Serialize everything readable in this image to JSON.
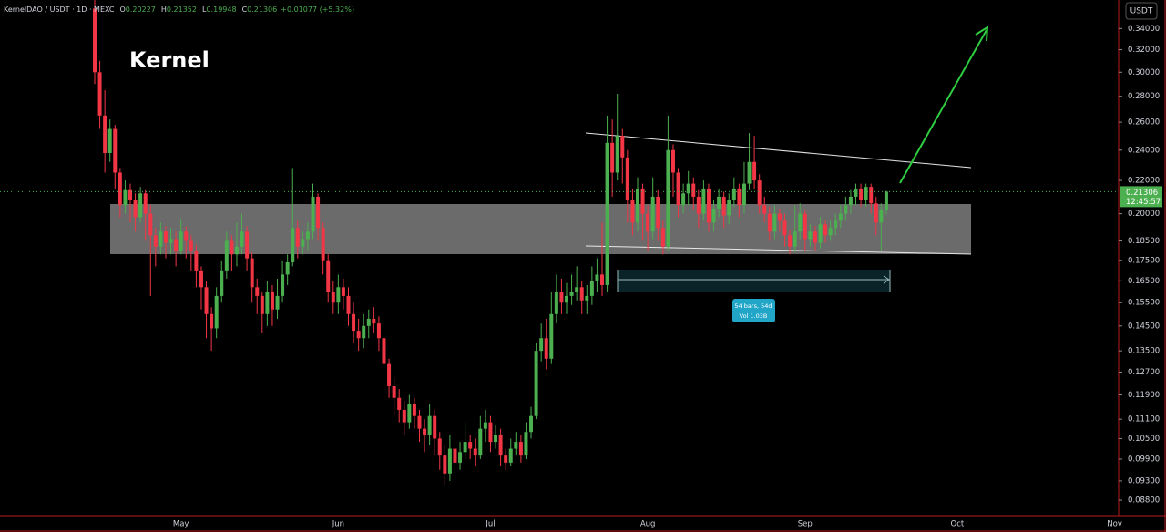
{
  "header": {
    "symbol": "KernelDAO / USDT · 1D · MEXC",
    "ohlc": [
      {
        "key": "O",
        "value": "0.20227"
      },
      {
        "key": "H",
        "value": "0.21352"
      },
      {
        "key": "L",
        "value": "0.19948"
      },
      {
        "key": "C",
        "value": "0.21306"
      }
    ],
    "change": "+0.01077 (+5.32%)"
  },
  "chart_data": {
    "type": "candlestick",
    "title": "Kernel",
    "currency": "USDT",
    "countdown": "12:45:57",
    "log_scale": true,
    "grid": false,
    "up_color": "#4caf50",
    "down_color": "#f23645",
    "x_labels": [
      "May",
      "Jun",
      "Jul",
      "Aug",
      "Sep",
      "Oct",
      "Nov"
    ],
    "measure": {
      "bars": "54 bars, 54d",
      "volume": "Vol 1.03B"
    },
    "ylim": [
      0.0842,
      0.369
    ],
    "yticks": [
      {
        "value": 0.34,
        "label": "0.34000"
      },
      {
        "value": 0.32,
        "label": "0.32000"
      },
      {
        "value": 0.3,
        "label": "0.30000"
      },
      {
        "value": 0.28,
        "label": "0.28000"
      },
      {
        "value": 0.26,
        "label": "0.26000"
      },
      {
        "value": 0.24,
        "label": "0.24000"
      },
      {
        "value": 0.22,
        "label": "0.22000"
      },
      {
        "value": 0.2,
        "label": "0.20000"
      },
      {
        "value": 0.185,
        "label": "0.18500"
      },
      {
        "value": 0.175,
        "label": "0.17500"
      },
      {
        "value": 0.165,
        "label": "0.16500"
      },
      {
        "value": 0.155,
        "label": "0.15500"
      },
      {
        "value": 0.145,
        "label": "0.14500"
      },
      {
        "value": 0.135,
        "label": "0.13500"
      },
      {
        "value": 0.127,
        "label": "0.12700"
      },
      {
        "value": 0.119,
        "label": "0.11900"
      },
      {
        "value": 0.111,
        "label": "0.11100"
      },
      {
        "value": 0.105,
        "label": "0.10500"
      },
      {
        "value": 0.099,
        "label": "0.09900"
      },
      {
        "value": 0.093,
        "label": "0.09300"
      },
      {
        "value": 0.088,
        "label": "0.08800"
      }
    ],
    "open": [
      0.36,
      0.3,
      0.265,
      0.238,
      0.255,
      0.225,
      0.205,
      0.214,
      0.208,
      0.198,
      0.212,
      0.2,
      0.188,
      0.182,
      0.19,
      0.184,
      0.186,
      0.18,
      0.19,
      0.185,
      0.18,
      0.17,
      0.162,
      0.15,
      0.144,
      0.158,
      0.17,
      0.185,
      0.178,
      0.182,
      0.19,
      0.176,
      0.162,
      0.158,
      0.15,
      0.16,
      0.152,
      0.158,
      0.168,
      0.174,
      0.192,
      0.182,
      0.186,
      0.19,
      0.21,
      0.192,
      0.175,
      0.16,
      0.155,
      0.162,
      0.158,
      0.15,
      0.143,
      0.14,
      0.145,
      0.148,
      0.146,
      0.14,
      0.13,
      0.122,
      0.118,
      0.114,
      0.11,
      0.116,
      0.112,
      0.108,
      0.106,
      0.112,
      0.105,
      0.1,
      0.095,
      0.102,
      0.098,
      0.101,
      0.104,
      0.102,
      0.1,
      0.108,
      0.11,
      0.104,
      0.106,
      0.1,
      0.098,
      0.102,
      0.104,
      0.1,
      0.107,
      0.112,
      0.135,
      0.14,
      0.132,
      0.15,
      0.16,
      0.155,
      0.158,
      0.16,
      0.162,
      0.156,
      0.158,
      0.165,
      0.168,
      0.163,
      0.245,
      0.225,
      0.25,
      0.235,
      0.208,
      0.195,
      0.215,
      0.2,
      0.19,
      0.21,
      0.192,
      0.182,
      0.24,
      0.225,
      0.205,
      0.212,
      0.218,
      0.21,
      0.2,
      0.215,
      0.195,
      0.203,
      0.21,
      0.199,
      0.208,
      0.215,
      0.205,
      0.218,
      0.232,
      0.22,
      0.205,
      0.2,
      0.19,
      0.2,
      0.196,
      0.188,
      0.182,
      0.19,
      0.2,
      0.186,
      0.19,
      0.184,
      0.194,
      0.188,
      0.192,
      0.196,
      0.2,
      0.205,
      0.21,
      0.215,
      0.208,
      0.216,
      0.206,
      0.195,
      0.20227
    ],
    "high": [
      0.369,
      0.31,
      0.285,
      0.262,
      0.258,
      0.228,
      0.22,
      0.218,
      0.212,
      0.216,
      0.214,
      0.205,
      0.192,
      0.195,
      0.193,
      0.192,
      0.19,
      0.197,
      0.193,
      0.188,
      0.183,
      0.172,
      0.165,
      0.153,
      0.162,
      0.175,
      0.19,
      0.188,
      0.195,
      0.2,
      0.193,
      0.179,
      0.166,
      0.16,
      0.165,
      0.163,
      0.166,
      0.175,
      0.178,
      0.228,
      0.196,
      0.19,
      0.195,
      0.218,
      0.212,
      0.195,
      0.178,
      0.165,
      0.168,
      0.166,
      0.162,
      0.155,
      0.148,
      0.15,
      0.152,
      0.153,
      0.149,
      0.143,
      0.132,
      0.125,
      0.121,
      0.117,
      0.119,
      0.118,
      0.114,
      0.111,
      0.116,
      0.114,
      0.107,
      0.103,
      0.106,
      0.104,
      0.104,
      0.11,
      0.106,
      0.105,
      0.112,
      0.114,
      0.112,
      0.109,
      0.108,
      0.102,
      0.105,
      0.107,
      0.106,
      0.11,
      0.115,
      0.138,
      0.146,
      0.148,
      0.16,
      0.168,
      0.166,
      0.164,
      0.168,
      0.172,
      0.165,
      0.163,
      0.172,
      0.176,
      0.195,
      0.265,
      0.262,
      0.282,
      0.255,
      0.24,
      0.215,
      0.222,
      0.218,
      0.205,
      0.222,
      0.214,
      0.196,
      0.265,
      0.244,
      0.228,
      0.218,
      0.226,
      0.222,
      0.214,
      0.22,
      0.218,
      0.208,
      0.215,
      0.213,
      0.212,
      0.222,
      0.218,
      0.232,
      0.252,
      0.25,
      0.224,
      0.21,
      0.204,
      0.205,
      0.203,
      0.2,
      0.191,
      0.205,
      0.206,
      0.202,
      0.194,
      0.193,
      0.198,
      0.196,
      0.196,
      0.2,
      0.205,
      0.21,
      0.214,
      0.218,
      0.218,
      0.218,
      0.218,
      0.21,
      0.206,
      0.21352
    ],
    "low": [
      0.29,
      0.255,
      0.225,
      0.232,
      0.215,
      0.198,
      0.2,
      0.195,
      0.19,
      0.195,
      0.185,
      0.158,
      0.172,
      0.178,
      0.176,
      0.178,
      0.172,
      0.178,
      0.176,
      0.17,
      0.162,
      0.152,
      0.14,
      0.135,
      0.14,
      0.155,
      0.166,
      0.17,
      0.172,
      0.178,
      0.17,
      0.155,
      0.15,
      0.142,
      0.145,
      0.145,
      0.148,
      0.155,
      0.163,
      0.172,
      0.176,
      0.178,
      0.18,
      0.186,
      0.185,
      0.168,
      0.155,
      0.15,
      0.15,
      0.152,
      0.145,
      0.138,
      0.135,
      0.136,
      0.14,
      0.142,
      0.135,
      0.125,
      0.118,
      0.112,
      0.11,
      0.106,
      0.108,
      0.108,
      0.104,
      0.101,
      0.103,
      0.1,
      0.096,
      0.092,
      0.093,
      0.095,
      0.096,
      0.099,
      0.099,
      0.097,
      0.099,
      0.104,
      0.101,
      0.102,
      0.097,
      0.096,
      0.097,
      0.1,
      0.098,
      0.099,
      0.105,
      0.111,
      0.131,
      0.128,
      0.13,
      0.146,
      0.15,
      0.15,
      0.154,
      0.156,
      0.15,
      0.15,
      0.154,
      0.16,
      0.158,
      0.16,
      0.21,
      0.22,
      0.218,
      0.195,
      0.188,
      0.19,
      0.185,
      0.18,
      0.186,
      0.185,
      0.178,
      0.18,
      0.21,
      0.198,
      0.2,
      0.205,
      0.202,
      0.192,
      0.196,
      0.19,
      0.19,
      0.198,
      0.192,
      0.194,
      0.204,
      0.198,
      0.2,
      0.214,
      0.215,
      0.2,
      0.195,
      0.185,
      0.186,
      0.19,
      0.182,
      0.178,
      0.179,
      0.186,
      0.18,
      0.182,
      0.18,
      0.181,
      0.184,
      0.185,
      0.188,
      0.192,
      0.196,
      0.2,
      0.205,
      0.204,
      0.204,
      0.2,
      0.188,
      0.18,
      0.19948
    ],
    "close": [
      0.3,
      0.265,
      0.238,
      0.255,
      0.225,
      0.205,
      0.214,
      0.208,
      0.198,
      0.212,
      0.2,
      0.188,
      0.182,
      0.19,
      0.184,
      0.186,
      0.18,
      0.19,
      0.185,
      0.18,
      0.17,
      0.162,
      0.15,
      0.144,
      0.158,
      0.17,
      0.185,
      0.178,
      0.182,
      0.19,
      0.176,
      0.162,
      0.158,
      0.15,
      0.16,
      0.152,
      0.158,
      0.168,
      0.174,
      0.192,
      0.182,
      0.186,
      0.19,
      0.21,
      0.192,
      0.175,
      0.16,
      0.155,
      0.162,
      0.158,
      0.15,
      0.143,
      0.14,
      0.145,
      0.148,
      0.146,
      0.14,
      0.13,
      0.122,
      0.118,
      0.114,
      0.11,
      0.116,
      0.112,
      0.108,
      0.106,
      0.112,
      0.105,
      0.1,
      0.095,
      0.102,
      0.098,
      0.101,
      0.104,
      0.102,
      0.1,
      0.108,
      0.11,
      0.104,
      0.106,
      0.1,
      0.098,
      0.102,
      0.104,
      0.1,
      0.107,
      0.112,
      0.135,
      0.14,
      0.132,
      0.15,
      0.16,
      0.155,
      0.158,
      0.16,
      0.162,
      0.156,
      0.158,
      0.165,
      0.168,
      0.163,
      0.245,
      0.225,
      0.25,
      0.235,
      0.208,
      0.195,
      0.215,
      0.2,
      0.19,
      0.21,
      0.192,
      0.182,
      0.24,
      0.225,
      0.205,
      0.212,
      0.218,
      0.21,
      0.2,
      0.215,
      0.195,
      0.203,
      0.21,
      0.199,
      0.208,
      0.215,
      0.205,
      0.218,
      0.232,
      0.22,
      0.205,
      0.2,
      0.19,
      0.2,
      0.196,
      0.188,
      0.182,
      0.19,
      0.2,
      0.186,
      0.19,
      0.184,
      0.194,
      0.188,
      0.192,
      0.196,
      0.2,
      0.205,
      0.21,
      0.215,
      0.208,
      0.216,
      0.206,
      0.195,
      0.202,
      0.21306
    ]
  }
}
